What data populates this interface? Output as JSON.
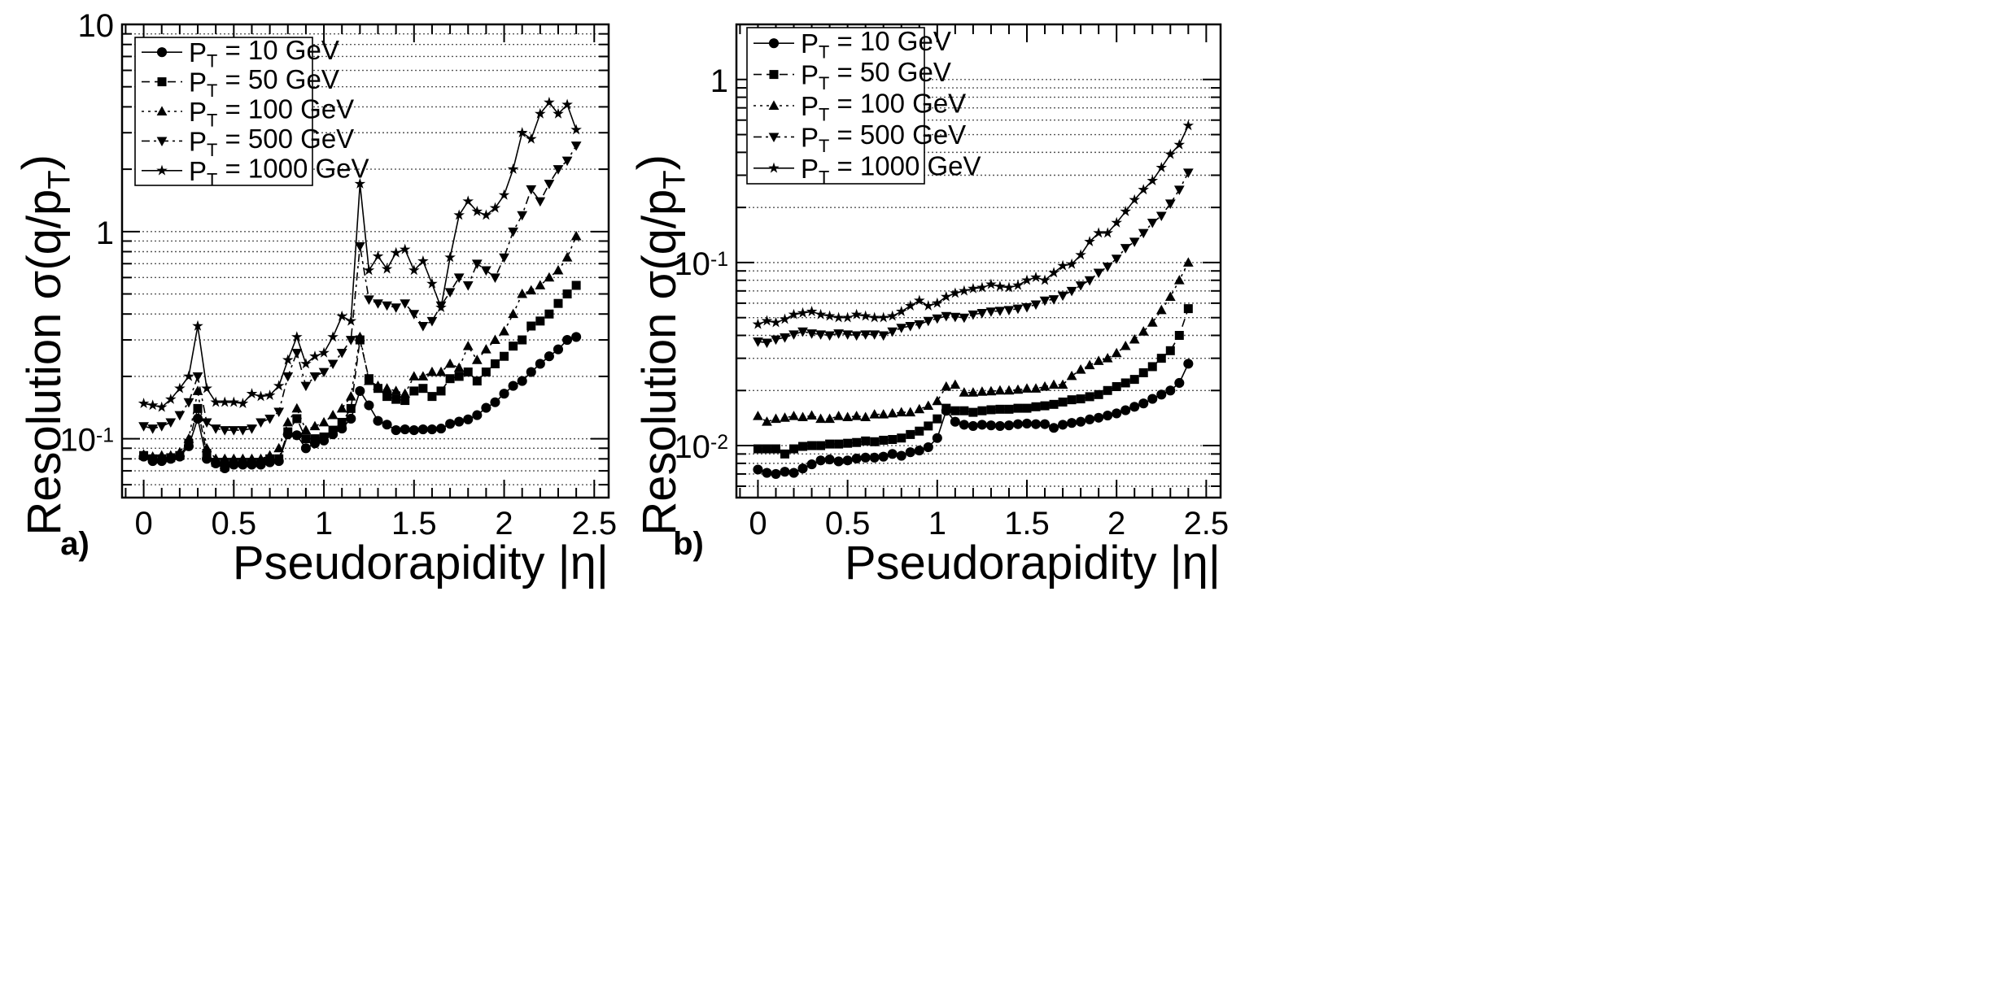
{
  "chart_data": [
    {
      "type": "line",
      "panel_label": "a)",
      "xlabel": "Pseudorapidity |η|",
      "ylabel": "Resolution σ(q/p_T)",
      "xlim": [
        -0.12,
        2.58
      ],
      "ylim": [
        0.052,
        10
      ],
      "yscale": "log",
      "xticks": [
        "0",
        "0.5",
        "1",
        "1.5",
        "2",
        "2.5"
      ],
      "ytick_labels": [
        {
          "value": 0.1,
          "base": "10",
          "exp": "-1"
        },
        {
          "value": 1,
          "base": "1",
          "exp": ""
        },
        {
          "value": 10,
          "base": "10",
          "exp": ""
        }
      ],
      "grid": "horizontal minor dotted",
      "legend": "top-left",
      "x": [
        0,
        0.05,
        0.1,
        0.15,
        0.2,
        0.25,
        0.3,
        0.35,
        0.4,
        0.45,
        0.5,
        0.55,
        0.6,
        0.65,
        0.7,
        0.75,
        0.8,
        0.85,
        0.9,
        0.95,
        1.0,
        1.05,
        1.1,
        1.15,
        1.2,
        1.25,
        1.3,
        1.35,
        1.4,
        1.45,
        1.5,
        1.55,
        1.6,
        1.65,
        1.7,
        1.75,
        1.8,
        1.85,
        1.9,
        1.95,
        2.0,
        2.05,
        2.1,
        2.15,
        2.2,
        2.25,
        2.3,
        2.35,
        2.4
      ],
      "series": [
        {
          "name": "P_T = 10 GeV",
          "marker": "circle",
          "dash": "",
          "values": [
            0.082,
            0.078,
            0.078,
            0.08,
            0.082,
            0.092,
            0.125,
            0.08,
            0.076,
            0.072,
            0.075,
            0.075,
            0.075,
            0.075,
            0.077,
            0.078,
            0.105,
            0.104,
            0.09,
            0.095,
            0.098,
            0.105,
            0.112,
            0.125,
            0.17,
            0.145,
            0.122,
            0.117,
            0.11,
            0.111,
            0.11,
            0.111,
            0.111,
            0.112,
            0.118,
            0.121,
            0.124,
            0.13,
            0.141,
            0.15,
            0.165,
            0.18,
            0.19,
            0.21,
            0.23,
            0.25,
            0.27,
            0.3,
            0.31
          ]
        },
        {
          "name": "P_T = 50 GeV",
          "marker": "square",
          "dash": "10,6",
          "values": [
            0.083,
            0.08,
            0.08,
            0.081,
            0.083,
            0.095,
            0.14,
            0.085,
            0.077,
            0.077,
            0.077,
            0.077,
            0.077,
            0.077,
            0.08,
            0.08,
            0.108,
            0.125,
            0.1,
            0.1,
            0.102,
            0.11,
            0.12,
            0.14,
            0.3,
            0.195,
            0.175,
            0.16,
            0.155,
            0.153,
            0.17,
            0.175,
            0.16,
            0.17,
            0.195,
            0.2,
            0.21,
            0.19,
            0.21,
            0.23,
            0.25,
            0.28,
            0.3,
            0.35,
            0.37,
            0.4,
            0.45,
            0.5,
            0.55
          ]
        },
        {
          "name": "P_T = 100 GeV",
          "marker": "triangle-up",
          "dash": "3,5",
          "values": [
            0.084,
            0.082,
            0.083,
            0.083,
            0.086,
            0.1,
            0.17,
            0.09,
            0.08,
            0.08,
            0.08,
            0.08,
            0.08,
            0.08,
            0.083,
            0.09,
            0.12,
            0.14,
            0.11,
            0.115,
            0.12,
            0.13,
            0.14,
            0.16,
            0.31,
            0.19,
            0.18,
            0.175,
            0.17,
            0.165,
            0.2,
            0.2,
            0.21,
            0.21,
            0.23,
            0.22,
            0.28,
            0.24,
            0.27,
            0.3,
            0.33,
            0.4,
            0.5,
            0.52,
            0.55,
            0.6,
            0.65,
            0.75,
            0.95
          ]
        },
        {
          "name": "P_T = 500 GeV",
          "marker": "triangle-down",
          "dash": "10,5,3,5",
          "values": [
            0.115,
            0.112,
            0.115,
            0.12,
            0.13,
            0.15,
            0.2,
            0.12,
            0.112,
            0.11,
            0.11,
            0.11,
            0.112,
            0.12,
            0.125,
            0.135,
            0.2,
            0.26,
            0.18,
            0.2,
            0.21,
            0.23,
            0.26,
            0.3,
            0.85,
            0.47,
            0.45,
            0.44,
            0.43,
            0.45,
            0.4,
            0.35,
            0.37,
            0.44,
            0.51,
            0.6,
            0.55,
            0.7,
            0.65,
            0.6,
            0.75,
            1.0,
            1.2,
            1.6,
            1.4,
            1.7,
            2.0,
            2.2,
            2.6
          ]
        },
        {
          "name": "P_T = 1000 GeV",
          "marker": "star",
          "dash": "",
          "values": [
            0.148,
            0.145,
            0.142,
            0.155,
            0.175,
            0.2,
            0.35,
            0.175,
            0.15,
            0.15,
            0.15,
            0.148,
            0.165,
            0.16,
            0.162,
            0.18,
            0.24,
            0.31,
            0.23,
            0.25,
            0.26,
            0.31,
            0.39,
            0.37,
            1.7,
            0.65,
            0.76,
            0.66,
            0.79,
            0.82,
            0.65,
            0.72,
            0.56,
            0.43,
            0.75,
            1.2,
            1.4,
            1.25,
            1.2,
            1.3,
            1.5,
            2.0,
            3.0,
            2.8,
            3.7,
            4.2,
            3.7,
            4.1,
            3.1
          ]
        }
      ]
    },
    {
      "type": "line",
      "panel_label": "b)",
      "xlabel": "Pseudorapidity |η|",
      "ylabel": "Resolution σ(q/p_T)",
      "xlim": [
        -0.12,
        2.58
      ],
      "ylim": [
        0.0052,
        2
      ],
      "yscale": "log",
      "xticks": [
        "0",
        "0.5",
        "1",
        "1.5",
        "2",
        "2.5"
      ],
      "ytick_labels": [
        {
          "value": 0.01,
          "base": "10",
          "exp": "-2"
        },
        {
          "value": 0.1,
          "base": "10",
          "exp": "-1"
        },
        {
          "value": 1,
          "base": "1",
          "exp": ""
        }
      ],
      "grid": "horizontal minor dotted",
      "legend": "top-left",
      "x": [
        0,
        0.05,
        0.1,
        0.15,
        0.2,
        0.25,
        0.3,
        0.35,
        0.4,
        0.45,
        0.5,
        0.55,
        0.6,
        0.65,
        0.7,
        0.75,
        0.8,
        0.85,
        0.9,
        0.95,
        1.0,
        1.05,
        1.1,
        1.15,
        1.2,
        1.25,
        1.3,
        1.35,
        1.4,
        1.45,
        1.5,
        1.55,
        1.6,
        1.65,
        1.7,
        1.75,
        1.8,
        1.85,
        1.9,
        1.95,
        2.0,
        2.05,
        2.1,
        2.15,
        2.2,
        2.25,
        2.3,
        2.35,
        2.4
      ],
      "series": [
        {
          "name": "P_T = 10 GeV",
          "marker": "circle",
          "dash": "",
          "values": [
            0.0074,
            0.0071,
            0.007,
            0.0072,
            0.0071,
            0.0075,
            0.0079,
            0.0083,
            0.0084,
            0.0082,
            0.0083,
            0.0085,
            0.0086,
            0.0086,
            0.0087,
            0.009,
            0.0088,
            0.0092,
            0.0094,
            0.0098,
            0.011,
            0.0155,
            0.0135,
            0.013,
            0.0128,
            0.013,
            0.0129,
            0.0128,
            0.0129,
            0.0131,
            0.0132,
            0.0131,
            0.0131,
            0.0125,
            0.013,
            0.0133,
            0.0135,
            0.0139,
            0.0142,
            0.0146,
            0.015,
            0.0156,
            0.0163,
            0.017,
            0.018,
            0.019,
            0.02,
            0.022,
            0.028
          ]
        },
        {
          "name": "P_T = 50 GeV",
          "marker": "square",
          "dash": "10,6",
          "values": [
            0.0096,
            0.0096,
            0.0096,
            0.009,
            0.0096,
            0.0099,
            0.01,
            0.01,
            0.0102,
            0.0102,
            0.0103,
            0.0104,
            0.0106,
            0.0105,
            0.0107,
            0.0108,
            0.011,
            0.0115,
            0.012,
            0.0128,
            0.014,
            0.016,
            0.0155,
            0.0155,
            0.0152,
            0.0155,
            0.0157,
            0.0158,
            0.0158,
            0.016,
            0.016,
            0.0163,
            0.0165,
            0.0168,
            0.0173,
            0.0178,
            0.018,
            0.0185,
            0.019,
            0.02,
            0.021,
            0.022,
            0.023,
            0.025,
            0.027,
            0.03,
            0.033,
            0.04,
            0.056
          ]
        },
        {
          "name": "P_T = 100 GeV",
          "marker": "triangle-up",
          "dash": "3,5",
          "values": [
            0.0145,
            0.0135,
            0.014,
            0.0142,
            0.0145,
            0.0143,
            0.0146,
            0.014,
            0.014,
            0.0145,
            0.0143,
            0.0145,
            0.0143,
            0.0148,
            0.0148,
            0.015,
            0.0152,
            0.0152,
            0.0158,
            0.0165,
            0.0175,
            0.021,
            0.0215,
            0.0195,
            0.0195,
            0.0197,
            0.0198,
            0.02,
            0.02,
            0.0202,
            0.0205,
            0.0205,
            0.021,
            0.0215,
            0.0215,
            0.024,
            0.026,
            0.0275,
            0.029,
            0.03,
            0.032,
            0.035,
            0.038,
            0.042,
            0.047,
            0.055,
            0.065,
            0.08,
            0.1
          ]
        },
        {
          "name": "P_T = 500 GeV",
          "marker": "triangle-down",
          "dash": "10,5,3,5",
          "values": [
            0.037,
            0.0365,
            0.038,
            0.039,
            0.0405,
            0.042,
            0.041,
            0.0405,
            0.04,
            0.041,
            0.0405,
            0.04,
            0.0405,
            0.0405,
            0.04,
            0.042,
            0.044,
            0.045,
            0.046,
            0.048,
            0.0495,
            0.051,
            0.0505,
            0.05,
            0.052,
            0.053,
            0.054,
            0.0545,
            0.055,
            0.056,
            0.057,
            0.059,
            0.062,
            0.063,
            0.066,
            0.07,
            0.075,
            0.08,
            0.088,
            0.095,
            0.105,
            0.12,
            0.13,
            0.145,
            0.165,
            0.18,
            0.21,
            0.25,
            0.31
          ]
        },
        {
          "name": "P_T = 1000 GeV",
          "marker": "star",
          "dash": "",
          "values": [
            0.046,
            0.048,
            0.047,
            0.049,
            0.052,
            0.053,
            0.054,
            0.052,
            0.051,
            0.05,
            0.05,
            0.052,
            0.051,
            0.05,
            0.05,
            0.051,
            0.054,
            0.058,
            0.062,
            0.058,
            0.06,
            0.065,
            0.068,
            0.07,
            0.072,
            0.073,
            0.076,
            0.074,
            0.073,
            0.075,
            0.08,
            0.083,
            0.08,
            0.088,
            0.096,
            0.098,
            0.11,
            0.13,
            0.145,
            0.145,
            0.165,
            0.19,
            0.22,
            0.25,
            0.28,
            0.33,
            0.39,
            0.44,
            0.56
          ]
        }
      ]
    }
  ]
}
